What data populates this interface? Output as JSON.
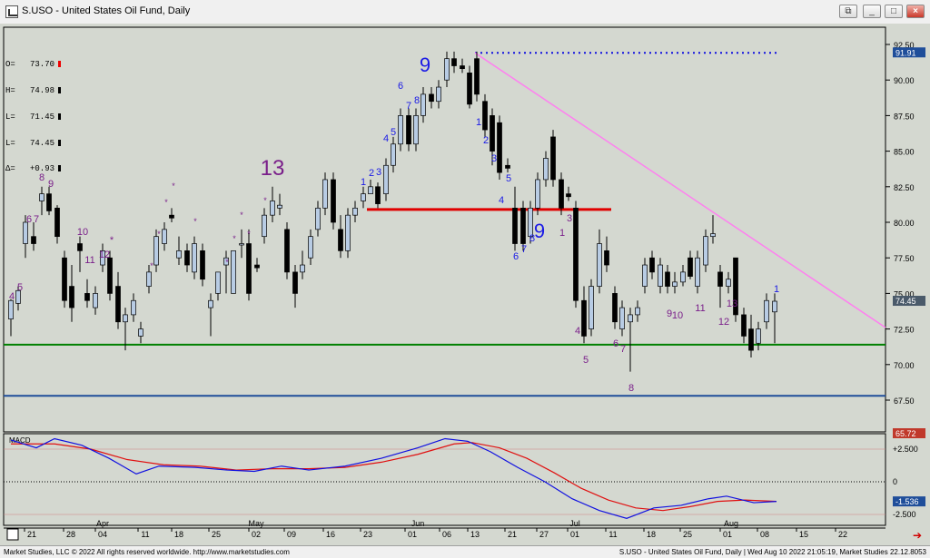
{
  "window": {
    "title": "S.USO - United States Oil Fund, Daily"
  },
  "ohlc_readout": {
    "open": "O=   73.70",
    "high": "H=   74.98",
    "low": "L=   71.45",
    "last": "L=   74.45",
    "change": "Δ=   +0.93"
  },
  "price_axis": {
    "ticks": [
      "92.50",
      "90.00",
      "87.50",
      "85.00",
      "82.50",
      "80.00",
      "77.50",
      "75.00",
      "72.50",
      "70.00",
      "67.50"
    ],
    "tag_top": "91.91",
    "tag_last": "74.45",
    "tag_bottom": "65.72"
  },
  "macd": {
    "label": "MACD",
    "ticks": [
      "+2.500",
      "0",
      "-2.500"
    ],
    "tag_value": "-1.536"
  },
  "date_axis": {
    "days": [
      "21",
      "28",
      "04",
      "11",
      "18",
      "25",
      "02",
      "09",
      "16",
      "23",
      "01",
      "06",
      "13",
      "21",
      "27",
      "01",
      "11",
      "18",
      "25",
      "01",
      "08",
      "15",
      "22"
    ],
    "months": [
      "Apr",
      "May",
      "Jun",
      "Jul",
      "Aug"
    ]
  },
  "annotations": {
    "counts_blue": [
      "9",
      "6",
      "7",
      "8",
      "4",
      "5",
      "1",
      "2",
      "3",
      "1",
      "2",
      "3",
      "4",
      "5",
      "6",
      "7",
      "8",
      "9",
      "1"
    ],
    "counts_purple": [
      "13",
      "8",
      "9",
      "6",
      "7",
      "4",
      "5",
      "10",
      "11",
      "12",
      "*",
      "*",
      "*",
      "*",
      "*",
      "*",
      "*",
      "*",
      "*",
      "*",
      "*",
      "1",
      "2",
      "3",
      "4",
      "5",
      "6",
      "7",
      "8",
      "9",
      "10",
      "11",
      "12",
      "13"
    ]
  },
  "colors": {
    "background": "#d4d8d0",
    "candle_up_fill": "#b8cce4",
    "candle_down_fill": "#000000",
    "trendline": "#ff7ff0",
    "resistance": "#e00000",
    "support": "#008000",
    "lower_line": "#1f4e9a",
    "dotted_top": "#1010e0",
    "macd_line": "#1010e0",
    "signal_line": "#e01010",
    "blue_count": "#1a1ae6",
    "purple_count": "#7a1f8a"
  },
  "status": {
    "copyright": "Market Studies, LLC © 2022 All rights reserved worldwide. http://www.marketstudies.com",
    "info": "S.USO - United States Oil Fund, Daily | Wed Aug 10 2022 21:05:19, Market Studies 22.12.8053"
  },
  "chart_data": {
    "type": "candlestick",
    "title": "S.USO - United States Oil Fund, Daily",
    "ylim": [
      66.5,
      94
    ],
    "approx_closes": [
      {
        "x": "Mar 21",
        "close": 73.5
      },
      {
        "x": "Mar 28",
        "close": 80.5
      },
      {
        "x": "Apr 04",
        "close": 73.0
      },
      {
        "x": "Apr 11",
        "close": 78.5
      },
      {
        "x": "Apr 18",
        "close": 79.5
      },
      {
        "x": "Apr 25",
        "close": 76.5
      },
      {
        "x": "May 02",
        "close": 78.0
      },
      {
        "x": "May 09",
        "close": 76.0
      },
      {
        "x": "May 16",
        "close": 82.0
      },
      {
        "x": "May 23",
        "close": 82.5
      },
      {
        "x": "Jun 01",
        "close": 86.0
      },
      {
        "x": "Jun 06",
        "close": 91.0
      },
      {
        "x": "Jun 13",
        "close": 89.0
      },
      {
        "x": "Jun 21",
        "close": 79.5
      },
      {
        "x": "Jun 27",
        "close": 83.0
      },
      {
        "x": "Jul 01",
        "close": 74.0
      },
      {
        "x": "Jul 11",
        "close": 72.5
      },
      {
        "x": "Jul 18",
        "close": 73.0
      },
      {
        "x": "Jul 25",
        "close": 78.0
      },
      {
        "x": "Aug 01",
        "close": 75.0
      },
      {
        "x": "Aug 08",
        "close": 74.45
      }
    ],
    "levels": {
      "support": 71.4,
      "resistance": 80.9,
      "lower": 67.8,
      "dotted_high": 91.91
    }
  }
}
